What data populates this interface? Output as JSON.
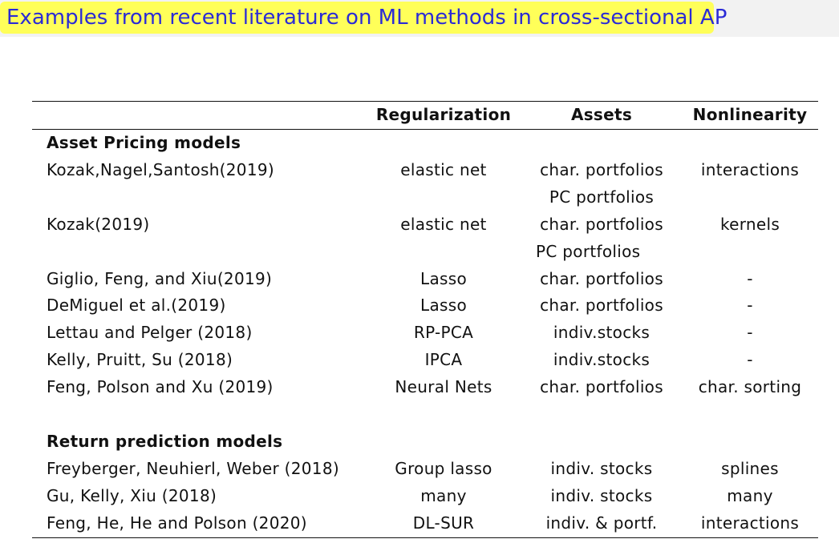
{
  "title": "Examples from recent literature on ML methods in cross-sectional AP",
  "table": {
    "headers": {
      "study": "",
      "regularization": "Regularization",
      "assets": "Assets",
      "nonlinearity": "Nonlinearity"
    },
    "sections": [
      {
        "label": "Asset Pricing models",
        "rows": [
          {
            "study": "Kozak,Nagel,Santosh(2019)",
            "regularization": "elastic net",
            "assets": [
              "char. portfolios",
              "PC portfolios"
            ],
            "nonlinearity": "interactions"
          },
          {
            "study": "Kozak(2019)",
            "regularization": "elastic net",
            "assets": [
              "char. portfolios",
              "PC portfolios"
            ],
            "nonlinearity": "kernels"
          },
          {
            "study": "Giglio, Feng, and Xiu(2019)",
            "regularization": "Lasso",
            "assets": [
              "char. portfolios"
            ],
            "nonlinearity": "-"
          },
          {
            "study": "DeMiguel et al.(2019)",
            "regularization": "Lasso",
            "assets": [
              "char. portfolios"
            ],
            "nonlinearity": "-"
          },
          {
            "study": "Lettau and Pelger (2018)",
            "regularization": "RP-PCA",
            "assets": [
              "indiv.stocks"
            ],
            "nonlinearity": "-"
          },
          {
            "study": "Kelly, Pruitt, Su (2018)",
            "regularization": "IPCA",
            "assets": [
              "indiv.stocks"
            ],
            "nonlinearity": "-"
          },
          {
            "study": "Feng, Polson and Xu (2019)",
            "regularization": "Neural Nets",
            "assets": [
              "char. portfolios"
            ],
            "nonlinearity": "char. sorting"
          }
        ]
      },
      {
        "label": "Return prediction models",
        "rows": [
          {
            "study": "Freyberger, Neuhierl, Weber (2018)",
            "regularization": "Group lasso",
            "assets": [
              "indiv. stocks"
            ],
            "nonlinearity": "splines"
          },
          {
            "study": "Gu, Kelly, Xiu (2018)",
            "regularization": "many",
            "assets": [
              "indiv. stocks"
            ],
            "nonlinearity": "many"
          },
          {
            "study": "Feng, He, He and Polson (2020)",
            "regularization": "DL-SUR",
            "assets": [
              "indiv. & portf."
            ],
            "nonlinearity": "interactions"
          }
        ]
      }
    ]
  }
}
